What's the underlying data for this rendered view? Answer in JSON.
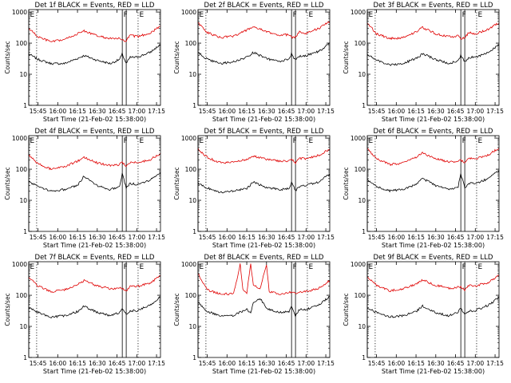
{
  "figure": {
    "ylabel": "Counts/sec",
    "xlabel": "Start Time (21-Feb-02 15:38:00)",
    "legend_text": "BLACK = Events, RED = LLD",
    "colors": {
      "events": "#000000",
      "lld": "#e00000",
      "axes": "#000000",
      "background": "#ffffff"
    },
    "y_ticks": [
      "1",
      "10",
      "100",
      "1000"
    ],
    "x_ticks": [
      "15:45",
      "16:00",
      "16:15",
      "16:30",
      "16:45",
      "17:00",
      "17:15"
    ],
    "markers": {
      "E_start": {
        "label": "E",
        "x": "15:38",
        "style": "solid"
      },
      "E_dotted_1": {
        "x": "15:44",
        "style": "dotted"
      },
      "F_left": {
        "label": "F",
        "x": "16:49",
        "style": "solid"
      },
      "F_right": {
        "x": "16:52",
        "style": "solid"
      },
      "E_dotted_2": {
        "label": "E",
        "x": "17:01",
        "style": "dotted"
      }
    }
  },
  "panels": [
    {
      "title": "Det 1f BLACK = Events, RED = LLD"
    },
    {
      "title": "Det 2f BLACK = Events, RED = LLD"
    },
    {
      "title": "Det 3f BLACK = Events, RED = LLD"
    },
    {
      "title": "Det 4f BLACK = Events, RED = LLD"
    },
    {
      "title": "Det 5f BLACK = Events, RED = LLD"
    },
    {
      "title": "Det 6f BLACK = Events, RED = LLD"
    },
    {
      "title": "Det 7f BLACK = Events, RED = LLD"
    },
    {
      "title": "Det 8f BLACK = Events, RED = LLD"
    },
    {
      "title": "Det 9f BLACK = Events, RED = LLD"
    }
  ],
  "chart_data": [
    {
      "type": "line",
      "title": "Det 1f BLACK = Events, RED = LLD",
      "xlabel": "Start Time (21-Feb-02 15:38:00)",
      "ylabel": "Counts/sec",
      "y_scale": "log",
      "ylim": [
        1,
        1200
      ],
      "xlim": [
        "15:38",
        "17:18"
      ],
      "x": [
        "15:38",
        "15:45",
        "15:55",
        "16:05",
        "16:15",
        "16:20",
        "16:30",
        "16:40",
        "16:47",
        "16:49",
        "16:52",
        "16:55",
        "17:00",
        "17:10",
        "17:18"
      ],
      "series": [
        {
          "name": "Events",
          "values": [
            45,
            30,
            22,
            22,
            32,
            40,
            28,
            22,
            30,
            45,
            22,
            35,
            35,
            50,
            90
          ]
        },
        {
          "name": "LLD",
          "values": [
            300,
            160,
            110,
            130,
            200,
            250,
            170,
            140,
            140,
            120,
            120,
            180,
            160,
            210,
            350
          ]
        }
      ]
    },
    {
      "type": "line",
      "title": "Det 2f BLACK = Events, RED = LLD",
      "xlabel": "Start Time (21-Feb-02 15:38:00)",
      "ylabel": "Counts/sec",
      "y_scale": "log",
      "ylim": [
        1,
        1200
      ],
      "xlim": [
        "15:38",
        "17:18"
      ],
      "x": [
        "15:38",
        "15:45",
        "15:55",
        "16:05",
        "16:15",
        "16:20",
        "16:30",
        "16:40",
        "16:47",
        "16:49",
        "16:52",
        "16:55",
        "17:00",
        "17:10",
        "17:18"
      ],
      "series": [
        {
          "name": "Events",
          "values": [
            50,
            30,
            22,
            25,
            35,
            50,
            32,
            25,
            32,
            45,
            28,
            38,
            40,
            55,
            100
          ]
        },
        {
          "name": "LLD",
          "values": [
            450,
            220,
            150,
            170,
            260,
            340,
            230,
            180,
            190,
            150,
            160,
            230,
            210,
            300,
            500
          ]
        }
      ]
    },
    {
      "type": "line",
      "title": "Det 3f BLACK = Events, RED = LLD",
      "xlabel": "Start Time (21-Feb-02 15:38:00)",
      "ylabel": "Counts/sec",
      "y_scale": "log",
      "ylim": [
        1,
        1200
      ],
      "xlim": [
        "15:38",
        "17:18"
      ],
      "x": [
        "15:38",
        "15:45",
        "15:55",
        "16:05",
        "16:15",
        "16:20",
        "16:30",
        "16:40",
        "16:47",
        "16:49",
        "16:52",
        "16:55",
        "17:00",
        "17:10",
        "17:18"
      ],
      "series": [
        {
          "name": "Events",
          "values": [
            45,
            28,
            20,
            22,
            32,
            45,
            30,
            22,
            28,
            40,
            25,
            35,
            35,
            50,
            90
          ]
        },
        {
          "name": "LLD",
          "values": [
            450,
            200,
            140,
            150,
            230,
            320,
            200,
            160,
            170,
            140,
            150,
            220,
            200,
            280,
            450
          ]
        }
      ]
    },
    {
      "type": "line",
      "title": "Det 4f BLACK = Events, RED = LLD",
      "xlabel": "Start Time (21-Feb-02 15:38:00)",
      "ylabel": "Counts/sec",
      "y_scale": "log",
      "ylim": [
        1,
        1200
      ],
      "xlim": [
        "15:38",
        "17:18"
      ],
      "x": [
        "15:38",
        "15:45",
        "15:55",
        "16:05",
        "16:15",
        "16:20",
        "16:30",
        "16:40",
        "16:47",
        "16:49",
        "16:52",
        "16:55",
        "17:00",
        "17:10",
        "17:18"
      ],
      "series": [
        {
          "name": "Events",
          "values": [
            40,
            28,
            20,
            22,
            30,
            60,
            30,
            22,
            28,
            70,
            25,
            35,
            32,
            45,
            80
          ]
        },
        {
          "name": "LLD",
          "values": [
            280,
            150,
            100,
            120,
            180,
            240,
            160,
            130,
            140,
            170,
            120,
            170,
            160,
            200,
            320
          ]
        }
      ]
    },
    {
      "type": "line",
      "title": "Det 5f BLACK = Events, RED = LLD",
      "xlabel": "Start Time (21-Feb-02 15:38:00)",
      "ylabel": "Counts/sec",
      "y_scale": "log",
      "ylim": [
        1,
        1200
      ],
      "xlim": [
        "15:38",
        "17:18"
      ],
      "x": [
        "15:38",
        "15:45",
        "15:55",
        "16:05",
        "16:15",
        "16:20",
        "16:30",
        "16:40",
        "16:47",
        "16:49",
        "16:52",
        "16:55",
        "17:00",
        "17:10",
        "17:18"
      ],
      "series": [
        {
          "name": "Events",
          "values": [
            35,
            25,
            18,
            20,
            24,
            38,
            26,
            22,
            24,
            38,
            20,
            28,
            30,
            40,
            70
          ]
        },
        {
          "name": "LLD",
          "values": [
            450,
            240,
            160,
            170,
            210,
            260,
            210,
            180,
            190,
            210,
            160,
            220,
            220,
            280,
            450
          ]
        }
      ]
    },
    {
      "type": "line",
      "title": "Det 6f BLACK = Events, RED = LLD",
      "xlabel": "Start Time (21-Feb-02 15:38:00)",
      "ylabel": "Counts/sec",
      "y_scale": "log",
      "ylim": [
        1,
        1200
      ],
      "xlim": [
        "15:38",
        "17:18"
      ],
      "x": [
        "15:38",
        "15:45",
        "15:55",
        "16:05",
        "16:15",
        "16:20",
        "16:30",
        "16:40",
        "16:47",
        "16:49",
        "16:52",
        "16:55",
        "17:00",
        "17:10",
        "17:18"
      ],
      "series": [
        {
          "name": "Events",
          "values": [
            45,
            28,
            20,
            22,
            32,
            50,
            30,
            22,
            28,
            70,
            25,
            35,
            35,
            50,
            90
          ]
        },
        {
          "name": "LLD",
          "values": [
            450,
            220,
            140,
            160,
            240,
            330,
            220,
            170,
            180,
            200,
            150,
            230,
            210,
            290,
            480
          ]
        }
      ]
    },
    {
      "type": "line",
      "title": "Det 7f BLACK = Events, RED = LLD",
      "xlabel": "Start Time (21-Feb-02 15:38:00)",
      "ylabel": "Counts/sec",
      "y_scale": "log",
      "ylim": [
        1,
        1200
      ],
      "xlim": [
        "15:38",
        "17:18"
      ],
      "x": [
        "15:38",
        "15:45",
        "15:55",
        "16:05",
        "16:15",
        "16:20",
        "16:30",
        "16:40",
        "16:47",
        "16:49",
        "16:52",
        "16:55",
        "17:00",
        "17:10",
        "17:18"
      ],
      "series": [
        {
          "name": "Events",
          "values": [
            40,
            28,
            20,
            22,
            30,
            45,
            28,
            22,
            28,
            40,
            24,
            32,
            32,
            48,
            90
          ]
        },
        {
          "name": "LLD",
          "values": [
            380,
            200,
            130,
            150,
            220,
            300,
            200,
            160,
            170,
            170,
            140,
            200,
            190,
            250,
            420
          ]
        }
      ]
    },
    {
      "type": "line",
      "title": "Det 8f BLACK = Events, RED = LLD",
      "xlabel": "Start Time (21-Feb-02 15:38:00)",
      "ylabel": "Counts/sec",
      "y_scale": "log",
      "ylim": [
        1,
        1200
      ],
      "xlim": [
        "15:38",
        "17:18"
      ],
      "x": [
        "15:38",
        "15:45",
        "15:55",
        "16:05",
        "16:10",
        "16:12",
        "16:15",
        "16:18",
        "16:20",
        "16:25",
        "16:30",
        "16:32",
        "16:40",
        "16:47",
        "16:49",
        "16:52",
        "16:55",
        "17:00",
        "17:10",
        "17:18"
      ],
      "series": [
        {
          "name": "Events",
          "values": [
            60,
            30,
            22,
            22,
            30,
            30,
            35,
            28,
            60,
            80,
            40,
            35,
            28,
            30,
            45,
            22,
            35,
            35,
            50,
            90
          ]
        },
        {
          "name": "LLD",
          "values": [
            500,
            150,
            110,
            110,
            1000,
            150,
            120,
            1000,
            220,
            150,
            1000,
            130,
            110,
            120,
            130,
            110,
            130,
            130,
            170,
            300
          ]
        }
      ]
    },
    {
      "type": "line",
      "title": "Det 9f BLACK = Events, RED = LLD",
      "xlabel": "Start Time (21-Feb-02 15:38:00)",
      "ylabel": "Counts/sec",
      "y_scale": "log",
      "ylim": [
        1,
        1200
      ],
      "xlim": [
        "15:38",
        "17:18"
      ],
      "x": [
        "15:38",
        "15:45",
        "15:55",
        "16:05",
        "16:15",
        "16:20",
        "16:30",
        "16:40",
        "16:47",
        "16:49",
        "16:52",
        "16:55",
        "17:00",
        "17:10",
        "17:18"
      ],
      "series": [
        {
          "name": "Events",
          "values": [
            40,
            28,
            20,
            22,
            30,
            45,
            28,
            22,
            28,
            40,
            24,
            32,
            32,
            48,
            85
          ]
        },
        {
          "name": "LLD",
          "values": [
            400,
            210,
            140,
            160,
            230,
            310,
            210,
            170,
            180,
            180,
            150,
            210,
            200,
            260,
            430
          ]
        }
      ]
    }
  ]
}
